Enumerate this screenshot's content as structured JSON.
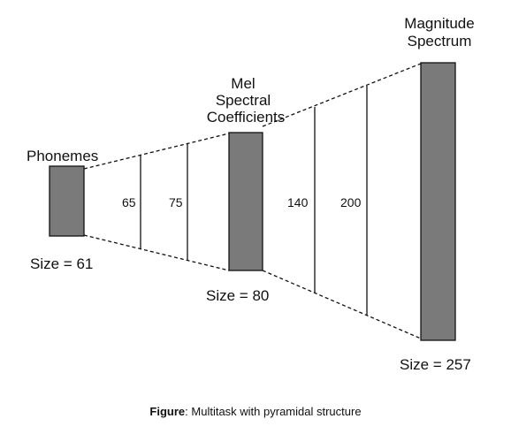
{
  "diagram": {
    "phonemes": {
      "label": "Phonemes",
      "size_label": "Size = 61"
    },
    "mel": {
      "label_lines": [
        "Mel",
        "Spectral",
        "Coefficients"
      ],
      "size_label": "Size = 80"
    },
    "magnitude": {
      "label_lines": [
        "Magnitude",
        "Spectrum"
      ],
      "size_label": "Size = 257"
    },
    "hidden_layers_left": [
      "65",
      "75"
    ],
    "hidden_layers_right": [
      "140",
      "200"
    ],
    "colors": {
      "block_fill": "#7a7a7a",
      "block_stroke": "#111111",
      "line": "#111111"
    }
  },
  "caption": {
    "prefix": "Figure",
    "text": ": Multitask with pyramidal structure"
  }
}
